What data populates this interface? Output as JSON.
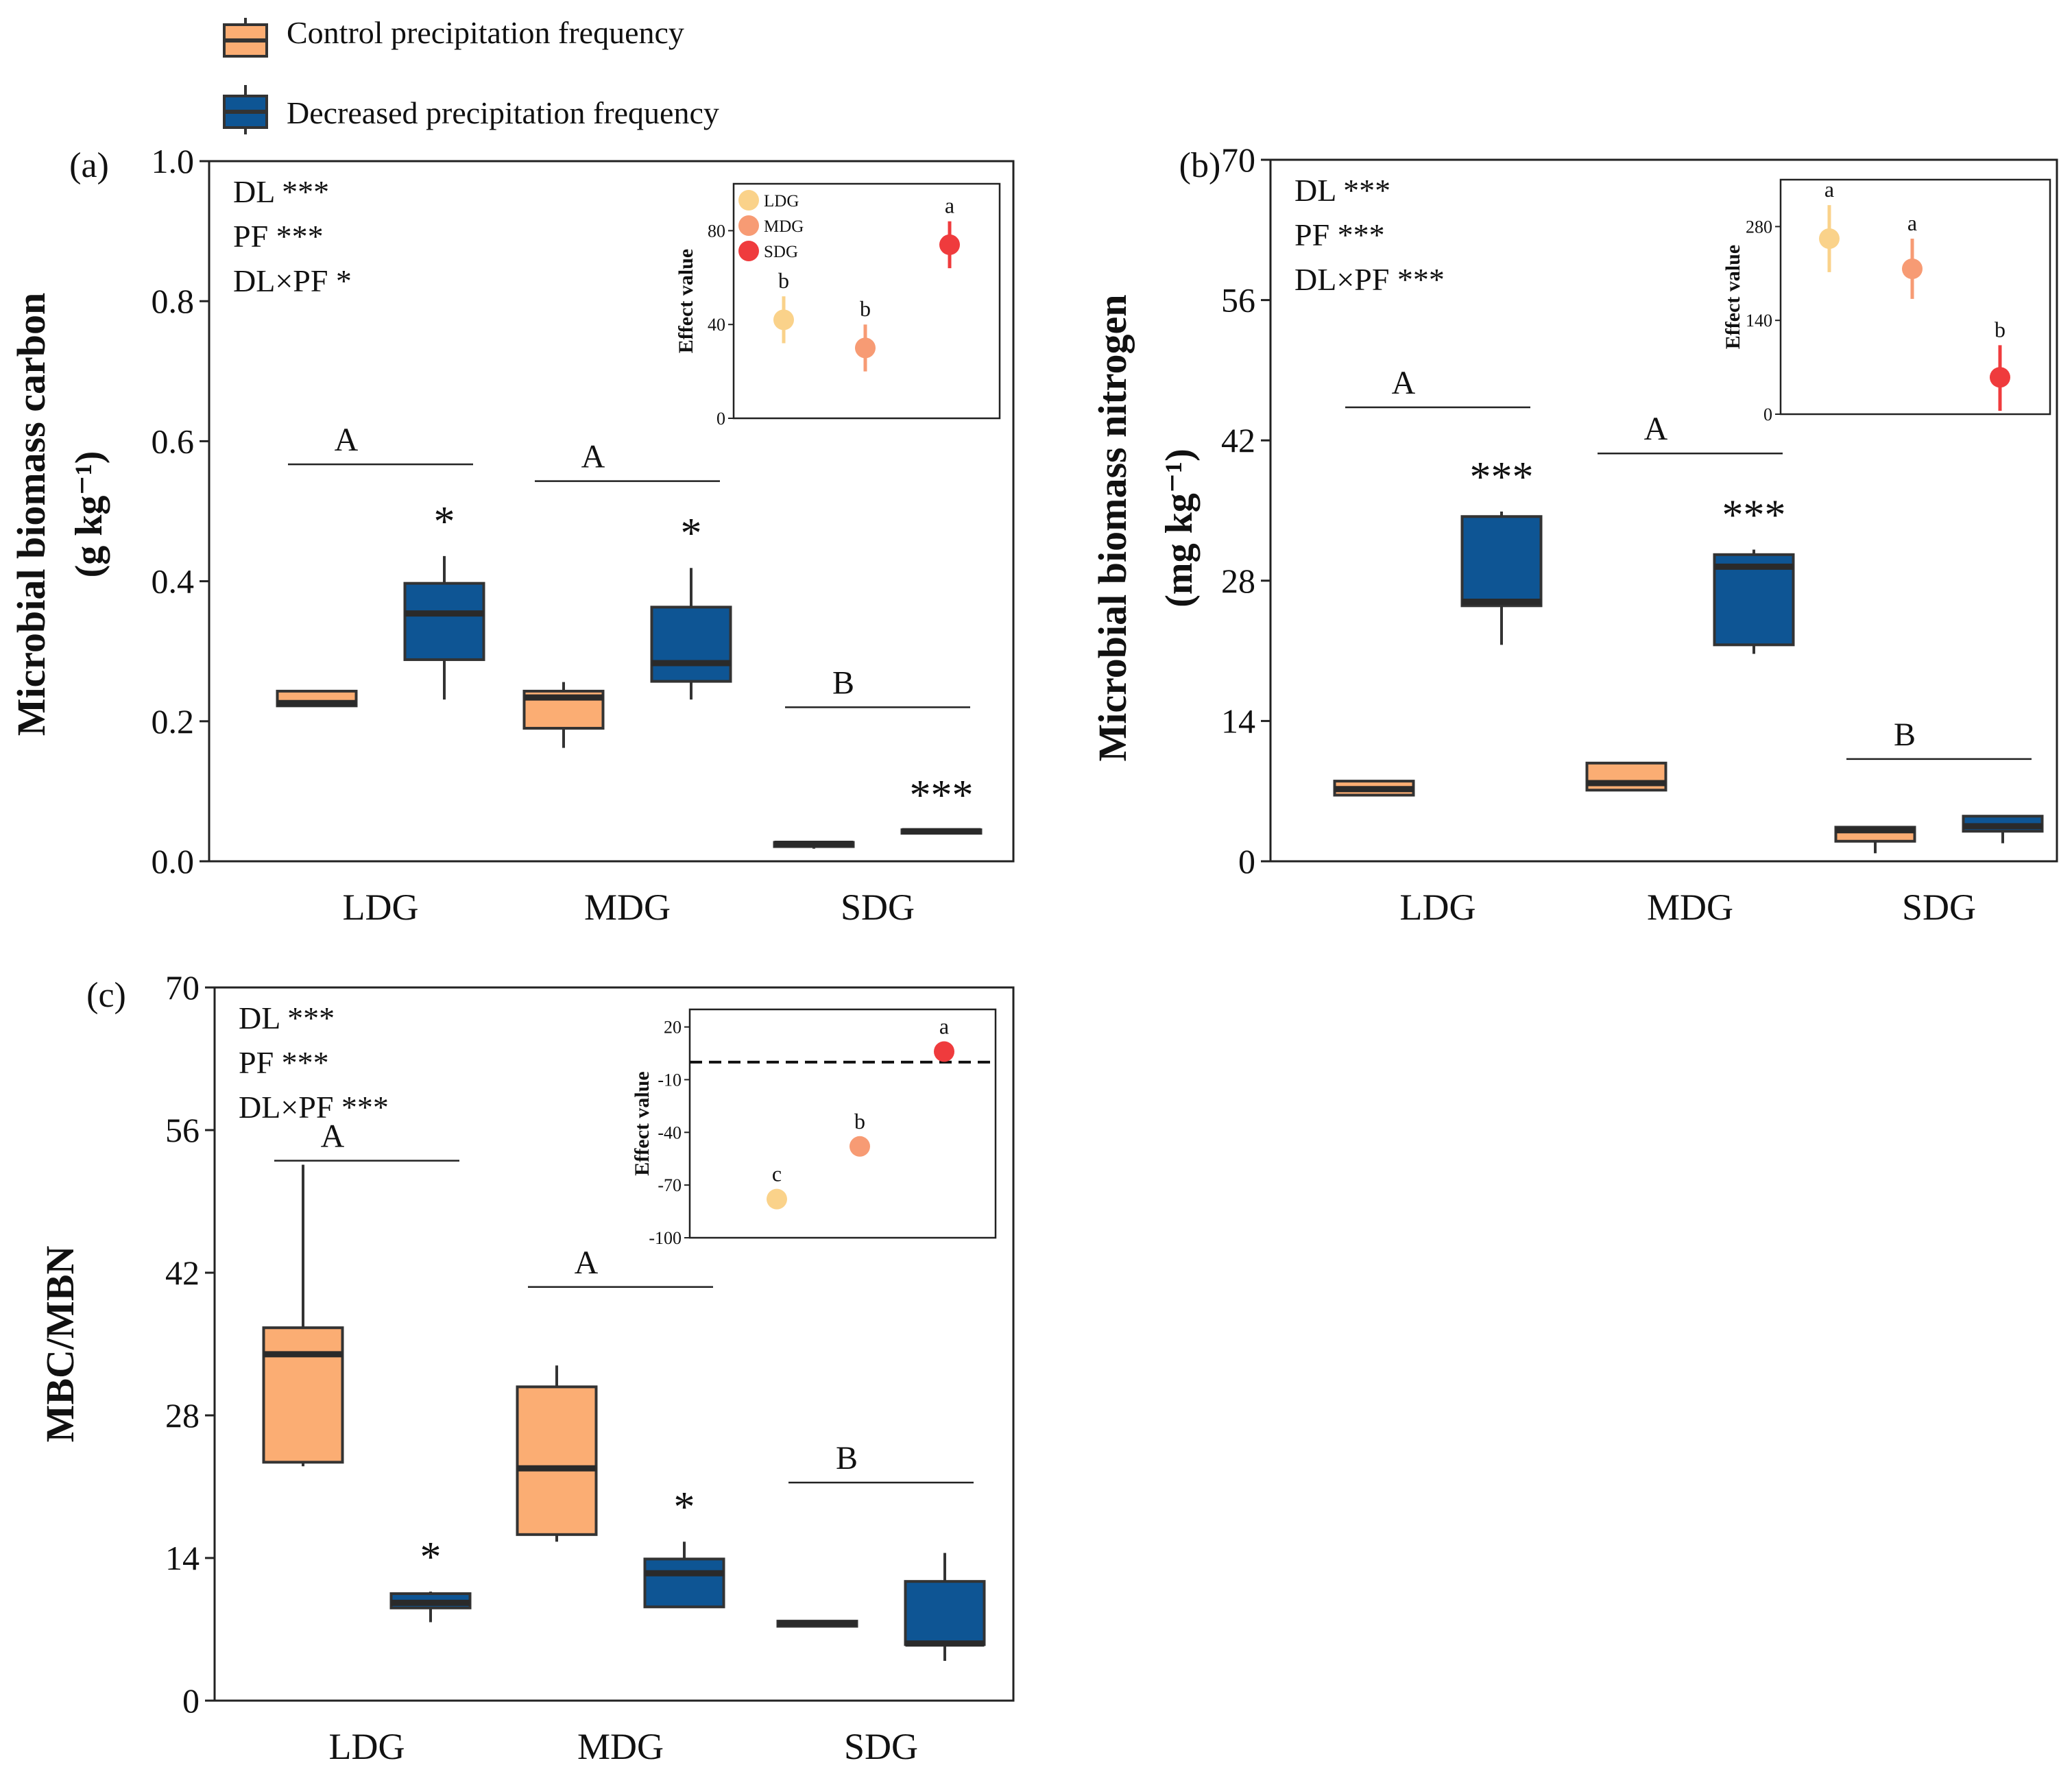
{
  "legend": {
    "control_label": "Control precipitation frequency",
    "decreased_label": "Decreased precipitation frequency"
  },
  "colors": {
    "control": "#FBAD73",
    "decreased": "#0E5594",
    "LDG": "#FAD28A",
    "MDG": "#F79B74",
    "SDG": "#EF3B3D"
  },
  "chart_data": [
    {
      "id": "a",
      "panel_label": "(a)",
      "type": "box",
      "ylabel_line1": "Microbial biomass carbon",
      "ylabel_line2": "(g kg⁻¹)",
      "ylim": [
        0,
        1.0
      ],
      "yticks": [
        "0.0",
        "0.2",
        "0.4",
        "0.6",
        "0.8",
        "1.0"
      ],
      "categories": [
        "LDG",
        "MDG",
        "SDG"
      ],
      "stats": [
        "DL ***",
        "PF ***",
        "DL×PF *"
      ],
      "group_letters": [
        {
          "category": "LDG",
          "letter": "A",
          "y": 0.567
        },
        {
          "category": "MDG",
          "letter": "A",
          "y": 0.543
        },
        {
          "category": "SDG",
          "letter": "B",
          "y": 0.22
        }
      ],
      "series": [
        {
          "name": "Control precipitation frequency",
          "boxes": [
            {
              "category": "LDG",
              "min": 0.222,
              "q1": 0.222,
              "median": 0.226,
              "q3": 0.243,
              "max": 0.243
            },
            {
              "category": "MDG",
              "min": 0.162,
              "q1": 0.19,
              "median": 0.234,
              "q3": 0.243,
              "max": 0.256
            },
            {
              "category": "SDG",
              "min": 0.018,
              "q1": 0.021,
              "median": 0.025,
              "q3": 0.027,
              "max": 0.027
            }
          ]
        },
        {
          "name": "Decreased precipitation frequency",
          "boxes": [
            {
              "category": "LDG",
              "min": 0.231,
              "q1": 0.288,
              "median": 0.354,
              "q3": 0.397,
              "max": 0.436,
              "sig": "*"
            },
            {
              "category": "MDG",
              "min": 0.231,
              "q1": 0.257,
              "median": 0.283,
              "q3": 0.363,
              "max": 0.419,
              "sig": "*"
            },
            {
              "category": "SDG",
              "min": 0.04,
              "q1": 0.04,
              "median": 0.043,
              "q3": 0.045,
              "max": 0.045,
              "sig": "***"
            }
          ]
        }
      ],
      "inset": {
        "ylabel": "Effect value",
        "ylim": [
          0,
          100
        ],
        "yticks": [
          "0",
          "40",
          "80"
        ],
        "dashed_zero": false,
        "legend": [
          "LDG",
          "MDG",
          "SDG"
        ],
        "points": [
          {
            "category": "LDG",
            "value": 42,
            "low": 32,
            "high": 52,
            "letter": "b"
          },
          {
            "category": "MDG",
            "value": 30,
            "low": 20,
            "high": 40,
            "letter": "b"
          },
          {
            "category": "SDG",
            "value": 74,
            "low": 64,
            "high": 84,
            "letter": "a"
          }
        ]
      }
    },
    {
      "id": "b",
      "panel_label": "(b)",
      "type": "box",
      "ylabel_line1": "Microbial biomass nitrogen",
      "ylabel_line2": "(mg kg⁻¹)",
      "ylim": [
        0,
        70
      ],
      "yticks": [
        "0",
        "14",
        "28",
        "42",
        "56",
        "70"
      ],
      "categories": [
        "LDG",
        "MDG",
        "SDG"
      ],
      "stats": [
        "DL ***",
        "PF ***",
        "DL×PF ***"
      ],
      "group_letters": [
        {
          "category": "LDG",
          "letter": "A",
          "y": 45.3
        },
        {
          "category": "MDG",
          "letter": "A",
          "y": 40.7
        },
        {
          "category": "SDG",
          "letter": "B",
          "y": 10.2
        }
      ],
      "series": [
        {
          "name": "Control precipitation frequency",
          "boxes": [
            {
              "category": "LDG",
              "min": 6.6,
              "q1": 6.6,
              "median": 7.2,
              "q3": 8.0,
              "max": 8.0
            },
            {
              "category": "MDG",
              "min": 7.1,
              "q1": 7.1,
              "median": 7.8,
              "q3": 9.8,
              "max": 9.8
            },
            {
              "category": "SDG",
              "min": 0.8,
              "q1": 2.0,
              "median": 3.1,
              "q3": 3.4,
              "max": 3.4
            }
          ]
        },
        {
          "name": "Decreased precipitation frequency",
          "boxes": [
            {
              "category": "LDG",
              "min": 21.6,
              "q1": 25.5,
              "median": 25.9,
              "q3": 34.4,
              "max": 34.9,
              "sig": "***"
            },
            {
              "category": "MDG",
              "min": 20.7,
              "q1": 21.6,
              "median": 29.4,
              "q3": 30.6,
              "max": 31.1,
              "sig": "***"
            },
            {
              "category": "SDG",
              "min": 1.8,
              "q1": 3.0,
              "median": 3.5,
              "q3": 4.5,
              "max": 4.5
            }
          ]
        }
      ],
      "inset": {
        "ylabel": "Effect value",
        "ylim": [
          0,
          350
        ],
        "yticks": [
          "0",
          "140",
          "280"
        ],
        "dashed_zero": false,
        "legend": [],
        "points": [
          {
            "category": "LDG",
            "value": 262,
            "low": 212,
            "high": 312,
            "letter": "a"
          },
          {
            "category": "MDG",
            "value": 217,
            "low": 172,
            "high": 262,
            "letter": "a"
          },
          {
            "category": "SDG",
            "value": 55,
            "low": 5,
            "high": 103,
            "letter": "b"
          }
        ]
      }
    },
    {
      "id": "c",
      "panel_label": "(c)",
      "type": "box",
      "ylabel_line1": "MBC/MBN",
      "ylabel_line2": "",
      "ylim": [
        0,
        70
      ],
      "yticks": [
        "0",
        "14",
        "28",
        "42",
        "56",
        "70"
      ],
      "categories": [
        "LDG",
        "MDG",
        "SDG"
      ],
      "stats": [
        "DL ***",
        "PF ***",
        "DL×PF ***"
      ],
      "group_letters": [
        {
          "category": "LDG",
          "letter": "A",
          "y": 53.0
        },
        {
          "category": "MDG",
          "letter": "A",
          "y": 40.6
        },
        {
          "category": "SDG",
          "letter": "B",
          "y": 21.4
        }
      ],
      "series": [
        {
          "name": "Control precipitation frequency",
          "boxes": [
            {
              "category": "LDG",
              "min": 23.0,
              "q1": 23.4,
              "median": 34.0,
              "q3": 36.6,
              "max": 52.6
            },
            {
              "category": "MDG",
              "min": 15.6,
              "q1": 16.3,
              "median": 22.8,
              "q3": 30.8,
              "max": 32.9
            },
            {
              "category": "SDG",
              "min": 7.3,
              "q1": 7.3,
              "median": 7.6,
              "q3": 7.8,
              "max": 7.8
            }
          ]
        },
        {
          "name": "Decreased precipitation frequency",
          "boxes": [
            {
              "category": "LDG",
              "min": 7.7,
              "q1": 9.1,
              "median": 9.6,
              "q3": 10.5,
              "max": 10.7,
              "sig": "*"
            },
            {
              "category": "MDG",
              "min": 9.2,
              "q1": 9.2,
              "median": 12.5,
              "q3": 13.9,
              "max": 15.6,
              "sig": "*"
            },
            {
              "category": "SDG",
              "min": 3.9,
              "q1": 5.5,
              "median": 5.6,
              "q3": 11.7,
              "max": 14.5
            }
          ]
        }
      ],
      "inset": {
        "ylabel": "Effect value",
        "ylim": [
          -100,
          30
        ],
        "yticks": [
          "-100",
          "-70",
          "-40",
          "-10",
          "20"
        ],
        "dashed_zero": true,
        "legend": [],
        "points": [
          {
            "category": "LDG",
            "value": -78,
            "low": -78,
            "high": -78,
            "letter": "c"
          },
          {
            "category": "MDG",
            "value": -48,
            "low": -48,
            "high": -48,
            "letter": "b"
          },
          {
            "category": "SDG",
            "value": 6,
            "low": 6,
            "high": 6,
            "letter": "a"
          }
        ]
      }
    }
  ]
}
